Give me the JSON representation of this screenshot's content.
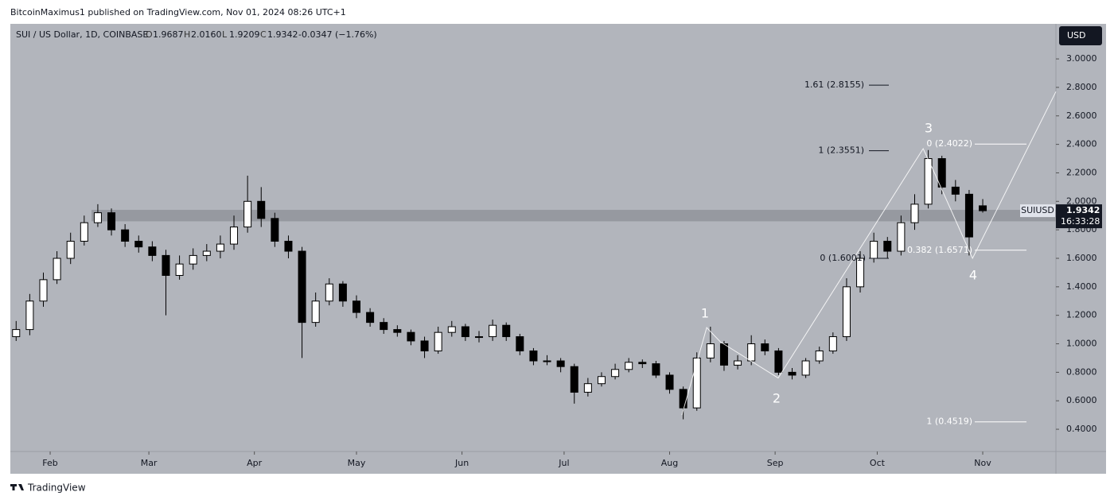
{
  "chart_data": {
    "type": "candlestick",
    "header": "BitcoinMaximus1 published on TradingView.com, Nov 01, 2024 08:26 UTC+1",
    "legend": {
      "symbol": "SUI / US Dollar, 1D, COINBASE",
      "fields": [
        {
          "name": "O",
          "value": 1.9687
        },
        {
          "name": "H",
          "value": 2.016,
          "label": "2.0160"
        },
        {
          "name": "L",
          "value": 1.9209
        },
        {
          "name": "C",
          "value": 1.9342
        }
      ],
      "change": {
        "value": -0.0347,
        "label": "-0.0347 (−1.76%)"
      }
    },
    "currency": "USD",
    "ticker": "SUIUSD",
    "countdown": "16:33:28",
    "footer": "TradingView",
    "up_color": "#ffffff",
    "down_color": "#000000",
    "x": [
      22,
      26,
      30,
      34,
      38,
      42,
      46,
      50,
      54,
      58,
      62,
      66,
      70,
      74,
      78,
      82,
      86,
      90,
      94,
      98,
      102,
      106,
      110,
      114,
      118,
      122,
      126,
      130,
      134,
      138,
      142,
      146,
      150,
      154,
      158,
      162,
      166,
      170,
      174,
      178,
      182,
      186,
      190,
      194,
      198,
      202,
      206,
      210,
      214,
      218,
      222,
      226,
      230,
      234,
      238,
      242,
      246,
      250,
      254,
      258,
      262,
      266,
      270,
      274,
      278,
      282,
      286,
      290,
      294,
      298,
      302,
      306
    ],
    "open": [
      1.05,
      1.1,
      1.3,
      1.45,
      1.6,
      1.72,
      1.85,
      1.92,
      1.8,
      1.72,
      1.68,
      1.62,
      1.48,
      1.56,
      1.62,
      1.65,
      1.7,
      1.82,
      2.0,
      1.88,
      1.72,
      1.65,
      1.15,
      1.3,
      1.42,
      1.3,
      1.22,
      1.15,
      1.1,
      1.08,
      1.02,
      0.95,
      1.08,
      1.12,
      1.05,
      1.05,
      1.13,
      1.05,
      0.95,
      0.88,
      0.88,
      0.84,
      0.66,
      0.72,
      0.77,
      0.82,
      0.87,
      0.86,
      0.78,
      0.68,
      0.55,
      0.9,
      1.0,
      0.85,
      0.88,
      1.0,
      0.95,
      0.8,
      0.78,
      0.88,
      0.95,
      1.05,
      1.4,
      1.6,
      1.72,
      1.65,
      1.85,
      1.98,
      2.3,
      2.1,
      2.05,
      1.9687
    ],
    "high": [
      1.16,
      1.35,
      1.5,
      1.65,
      1.78,
      1.9,
      1.98,
      1.95,
      1.84,
      1.76,
      1.72,
      1.66,
      1.62,
      1.67,
      1.7,
      1.76,
      1.9,
      2.18,
      2.1,
      1.92,
      1.76,
      1.68,
      1.36,
      1.46,
      1.44,
      1.34,
      1.25,
      1.18,
      1.13,
      1.1,
      1.05,
      1.12,
      1.16,
      1.14,
      1.09,
      1.17,
      1.15,
      1.07,
      0.97,
      0.92,
      0.9,
      0.86,
      0.76,
      0.8,
      0.86,
      0.9,
      0.89,
      0.88,
      0.8,
      0.7,
      0.94,
      1.12,
      1.02,
      0.92,
      1.06,
      1.03,
      0.97,
      0.83,
      0.9,
      0.98,
      1.08,
      1.46,
      1.65,
      1.78,
      1.75,
      1.9,
      2.05,
      2.36,
      2.32,
      2.15,
      2.08,
      2.016
    ],
    "low": [
      1.02,
      1.06,
      1.26,
      1.42,
      1.56,
      1.69,
      1.82,
      1.76,
      1.68,
      1.64,
      1.58,
      1.2,
      1.45,
      1.52,
      1.58,
      1.6,
      1.66,
      1.78,
      1.82,
      1.68,
      1.6,
      0.9,
      1.12,
      1.27,
      1.26,
      1.18,
      1.12,
      1.07,
      1.05,
      0.99,
      0.9,
      0.93,
      1.05,
      1.02,
      1.01,
      1.02,
      1.02,
      0.92,
      0.85,
      0.85,
      0.8,
      0.58,
      0.63,
      0.7,
      0.75,
      0.8,
      0.83,
      0.76,
      0.65,
      0.47,
      0.53,
      0.87,
      0.81,
      0.82,
      0.85,
      0.92,
      0.78,
      0.75,
      0.76,
      0.86,
      0.93,
      1.02,
      1.36,
      1.57,
      1.6,
      1.62,
      1.8,
      1.95,
      2.05,
      2.0,
      1.62,
      1.9209
    ],
    "close": [
      1.1,
      1.3,
      1.45,
      1.6,
      1.72,
      1.85,
      1.92,
      1.8,
      1.72,
      1.68,
      1.62,
      1.48,
      1.56,
      1.62,
      1.65,
      1.7,
      1.82,
      2.0,
      1.88,
      1.72,
      1.65,
      1.15,
      1.3,
      1.42,
      1.3,
      1.22,
      1.15,
      1.1,
      1.08,
      1.02,
      0.95,
      1.08,
      1.12,
      1.05,
      1.05,
      1.13,
      1.05,
      0.95,
      0.88,
      0.88,
      0.84,
      0.66,
      0.72,
      0.77,
      0.82,
      0.87,
      0.86,
      0.78,
      0.68,
      0.55,
      0.9,
      1.0,
      0.85,
      0.88,
      1.0,
      0.95,
      0.8,
      0.78,
      0.88,
      0.95,
      1.05,
      1.4,
      1.6,
      1.72,
      1.65,
      1.85,
      1.98,
      2.3,
      2.1,
      2.05,
      1.75,
      1.9342
    ],
    "xlim": [
      20.3,
      327.5
    ],
    "xticks": [
      {
        "value": 32,
        "label": "Feb"
      },
      {
        "value": 61,
        "label": "Mar"
      },
      {
        "value": 92,
        "label": "Apr"
      },
      {
        "value": 122,
        "label": "May"
      },
      {
        "value": 153,
        "label": "Jun"
      },
      {
        "value": 183,
        "label": "Jul"
      },
      {
        "value": 214,
        "label": "Aug"
      },
      {
        "value": 245,
        "label": "Sep"
      },
      {
        "value": 275,
        "label": "Oct"
      },
      {
        "value": 306,
        "label": "Nov"
      }
    ],
    "ylim": [
      0.244,
      3.246
    ],
    "yticks": [
      {
        "value": 0.4,
        "label": "0.4000"
      },
      {
        "value": 0.6,
        "label": "0.6000"
      },
      {
        "value": 0.8,
        "label": "0.8000"
      },
      {
        "value": 1.0,
        "label": "1.0000"
      },
      {
        "value": 1.2,
        "label": "1.2000"
      },
      {
        "value": 1.4,
        "label": "1.4000"
      },
      {
        "value": 1.6,
        "label": "1.6000"
      },
      {
        "value": 1.8,
        "label": "1.8000"
      },
      {
        "value": 2.0,
        "label": "2.0000"
      },
      {
        "value": 2.2,
        "label": "2.2000"
      },
      {
        "value": 2.4,
        "label": "2.4000"
      },
      {
        "value": 2.6,
        "label": "2.6000"
      },
      {
        "value": 2.8,
        "label": "2.8000"
      },
      {
        "value": 3.0,
        "label": "3.0000"
      }
    ],
    "zone": [
      1.86,
      1.94
    ],
    "fib_levels": [
      {
        "label": "1.61 (2.8155)",
        "value": 2.8155
      },
      {
        "label": "1 (2.3551)",
        "value": 2.3551
      },
      {
        "label": "0 (2.4022)",
        "value": 2.4022
      },
      {
        "label": "0 (1.6001)",
        "value": 1.6001
      },
      {
        "label": "0.382 (1.6571)",
        "value": 1.6571
      },
      {
        "label": "1 (0.4519)",
        "value": 0.4519
      }
    ],
    "wave": {
      "x": [
        217.6,
        224.9,
        228.9,
        245.9,
        288.5,
        292,
        303,
        327.5
      ],
      "y": [
        0.5,
        1.114,
        1.014,
        0.76,
        2.37,
        2.19,
        1.6,
        2.77
      ]
    },
    "wave_labels": [
      "1",
      "2",
      "3",
      "4"
    ]
  }
}
